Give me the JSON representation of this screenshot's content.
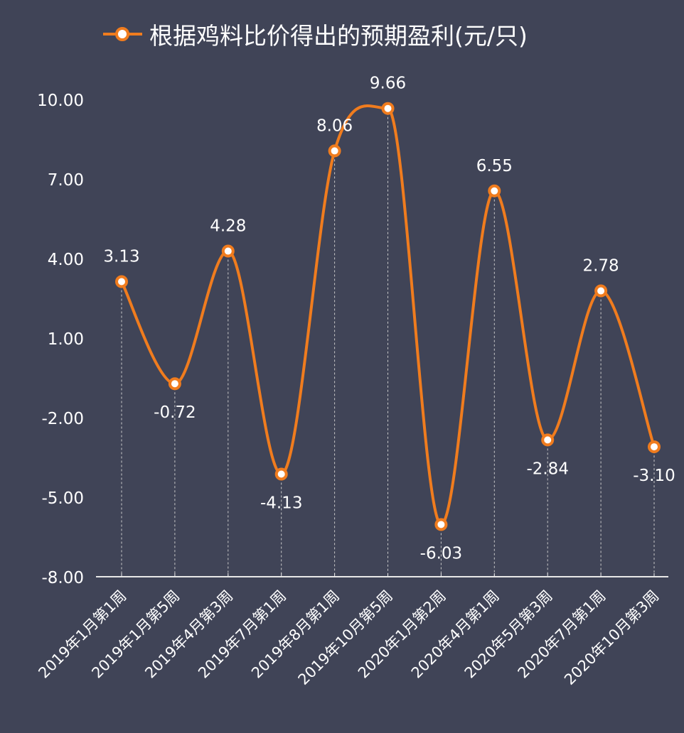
{
  "chart_data": {
    "type": "line",
    "title": "根据鸡料比价得出的预期盈利(元/只)",
    "series": [
      {
        "name": "根据鸡料比价得出的预期盈利(元/只)",
        "values": [
          3.13,
          -0.72,
          4.28,
          -4.13,
          8.06,
          9.66,
          -6.03,
          6.55,
          -2.84,
          2.78,
          -3.1
        ]
      }
    ],
    "categories": [
      "2019年1月第1周",
      "2019年1月第5周",
      "2019年4月第3周",
      "2019年7月第1周",
      "2019年8月第1周",
      "2019年10月第5周",
      "2020年1月第2周",
      "2020年4月第1周",
      "2020年5月第3周",
      "2020年7月第1周",
      "2020年10月第3周"
    ],
    "data_labels": [
      "3.13",
      "-0.72",
      "4.28",
      "-4.13",
      "8.06",
      "9.66",
      "-6.03",
      "6.55",
      "-2.84",
      "2.78",
      "-3.10"
    ],
    "yticks": [
      "10.00",
      "7.00",
      "4.00",
      "1.00",
      "-2.00",
      "-5.00",
      "-8.00"
    ],
    "ylim": [
      -8,
      10
    ],
    "smooth": true,
    "legend": "top",
    "grid": false,
    "colors": {
      "line": "#f07c1e",
      "background": "#404457",
      "text": "#ffffff"
    }
  }
}
